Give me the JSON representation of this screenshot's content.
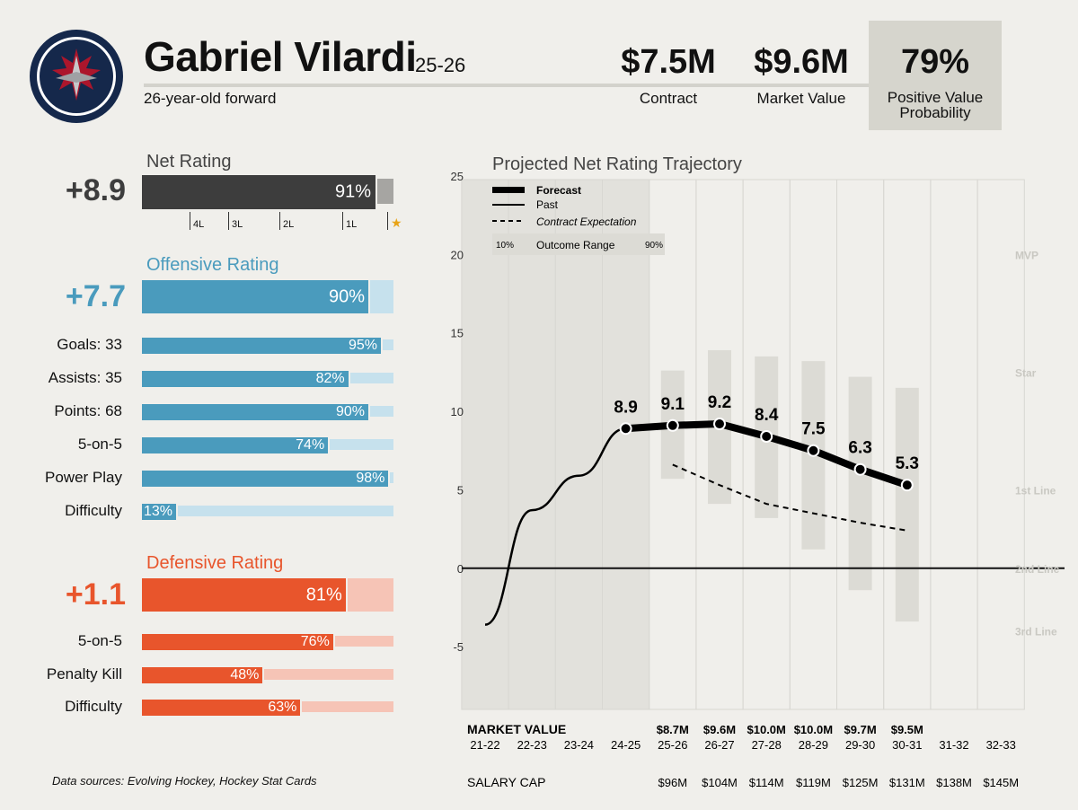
{
  "header": {
    "player_name": "Gabriel Vilardi",
    "season": "25-26",
    "subtitle": "26-year-old forward",
    "contract_value": "$7.5M",
    "contract_label": "Contract",
    "market_value": "$9.6M",
    "market_label": "Market Value",
    "positive_prob": "79%",
    "positive_label_1": "Positive Value",
    "positive_label_2": "Probability"
  },
  "net": {
    "title": "Net Rating",
    "value": "+8.9",
    "pct": 91,
    "pct_label": "91%",
    "ticks": [
      "4L",
      "3L",
      "2L",
      "1L"
    ],
    "star": "★"
  },
  "offense": {
    "title": "Offensive Rating",
    "value": "+7.7",
    "pct": 90,
    "pct_label": "90%",
    "rows": [
      {
        "label": "Goals: 33",
        "pct": 95,
        "pct_label": "95%"
      },
      {
        "label": "Assists: 35",
        "pct": 82,
        "pct_label": "82%"
      },
      {
        "label": "Points: 68",
        "pct": 90,
        "pct_label": "90%"
      },
      {
        "label": "5-on-5",
        "pct": 74,
        "pct_label": "74%"
      },
      {
        "label": "Power Play",
        "pct": 98,
        "pct_label": "98%"
      },
      {
        "label": "Difficulty",
        "pct": 13,
        "pct_label": "13%"
      }
    ]
  },
  "defense": {
    "title": "Defensive Rating",
    "value": "+1.1",
    "pct": 81,
    "pct_label": "81%",
    "rows": [
      {
        "label": "5-on-5",
        "pct": 76,
        "pct_label": "76%"
      },
      {
        "label": "Penalty Kill",
        "pct": 48,
        "pct_label": "48%"
      },
      {
        "label": "Difficulty",
        "pct": 63,
        "pct_label": "63%"
      }
    ]
  },
  "colors": {
    "net": "#3d3d3d",
    "net_light": "#a6a5a2",
    "offense": "#4a9bbd",
    "offense_light": "#c6e1ed",
    "defense": "#e8552c",
    "defense_light": "#f6c4b6",
    "star": "#e8a317",
    "logo_navy": "#15284b",
    "logo_red": "#ac162c"
  },
  "source_text": "Data sources: Evolving Hockey, Hockey Stat Cards",
  "chart_data": {
    "type": "line",
    "title": "Projected Net Rating Trajectory",
    "ylim": [
      -9,
      25
    ],
    "yticks": [
      -5,
      0,
      5,
      10,
      15,
      20,
      25
    ],
    "x": [
      "21-22",
      "22-23",
      "23-24",
      "24-25",
      "25-26",
      "26-27",
      "27-28",
      "28-29",
      "29-30",
      "30-31",
      "31-32",
      "32-33"
    ],
    "past": {
      "name": "Past",
      "x": [
        "21-22",
        "22-23",
        "23-24",
        "24-25"
      ],
      "values": [
        -3.6,
        3.7,
        5.9,
        8.9
      ]
    },
    "forecast": {
      "name": "Forecast",
      "x": [
        "24-25",
        "25-26",
        "26-27",
        "27-28",
        "28-29",
        "29-30",
        "30-31"
      ],
      "values": [
        8.9,
        9.1,
        9.2,
        8.4,
        7.5,
        6.3,
        5.3
      ],
      "labels": [
        "8.9",
        "9.1",
        "9.2",
        "8.4",
        "7.5",
        "6.3",
        "5.3"
      ]
    },
    "contract_expectation": {
      "name": "Contract Expectation",
      "x": [
        "25-26",
        "26-27",
        "27-28",
        "28-29",
        "29-30",
        "30-31"
      ],
      "values": [
        6.6,
        5.3,
        4.1,
        3.5,
        2.9,
        2.4
      ]
    },
    "outcome_range": {
      "name": "Outcome Range",
      "low_label": "10%",
      "high_label": "90%",
      "x": [
        "25-26",
        "26-27",
        "27-28",
        "28-29",
        "29-30",
        "30-31"
      ],
      "low": [
        5.7,
        4.1,
        3.2,
        1.2,
        -1.4,
        -3.4
      ],
      "high": [
        12.6,
        13.9,
        13.5,
        13.2,
        12.2,
        11.5
      ]
    },
    "tier_labels": [
      {
        "label": "MVP",
        "y": 20
      },
      {
        "label": "Star",
        "y": 12.5
      },
      {
        "label": "1st Line",
        "y": 5
      },
      {
        "label": "2nd Line",
        "y": 0
      },
      {
        "label": "3rd Line",
        "y": -4
      }
    ],
    "legend": [
      "Forecast",
      "Past",
      "Contract Expectation"
    ],
    "market_value_label": "MARKET VALUE",
    "market_values": [
      "",
      "",
      "",
      "",
      "$8.7M",
      "$9.6M",
      "$10.0M",
      "$10.0M",
      "$9.7M",
      "$9.5M",
      "",
      ""
    ],
    "salary_cap_label": "SALARY CAP",
    "salary_caps": [
      "",
      "",
      "",
      "",
      "$96M",
      "$104M",
      "$114M",
      "$119M",
      "$125M",
      "$131M",
      "$138M",
      "$145M"
    ]
  }
}
